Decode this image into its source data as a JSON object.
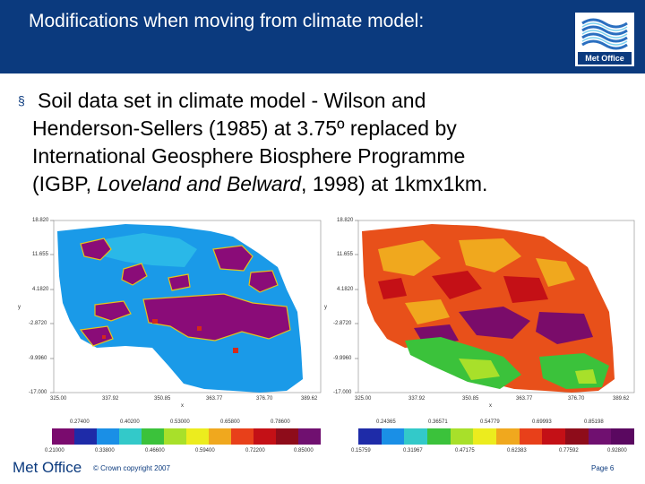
{
  "header": {
    "title": "Modifications when moving from climate model:",
    "logo_text": "Met Office",
    "background": "#0b3a7e"
  },
  "bullet": {
    "marker": "§",
    "line1": "Soil data set in climate model - Wilson and",
    "line2": "Henderson-Sellers (1985) at 3.75º replaced by",
    "line3": "International Geosphere Biosphere Programme",
    "line4_a": "(IGBP, ",
    "line4_italic": "Loveland and Belward",
    "line4_b": ", 1998) at 1kmx1km."
  },
  "map_left": {
    "y_ticks": [
      "18.820",
      "11.655",
      "4.1820",
      "-2.8720",
      "-9.9960",
      "-17.000"
    ],
    "x_ticks": [
      "325.00",
      "337.92",
      "350.85",
      "363.77",
      "376.70",
      "389.62"
    ],
    "x_label": "x",
    "y_label": "y",
    "legend_top": [
      "0.27400",
      "0.40200",
      "0.53000",
      "0.65800",
      "0.78600"
    ],
    "legend_bottom": [
      "0.21000",
      "0.33800",
      "0.46600",
      "0.59400",
      "0.72200",
      "0.85000"
    ],
    "legend_colors": [
      "#7a0b6e",
      "#1e2ba8",
      "#1a8fe6",
      "#33c9c9",
      "#3bc23b",
      "#a8e02a",
      "#ecec1e",
      "#f0a81e",
      "#e8401a",
      "#c41016",
      "#8e0c1a",
      "#701070"
    ]
  },
  "map_right": {
    "y_ticks": [
      "18.820",
      "11.655",
      "4.1820",
      "-2.8720",
      "-9.9960",
      "-17.000"
    ],
    "x_ticks": [
      "325.00",
      "337.92",
      "350.85",
      "363.77",
      "376.70",
      "389.62"
    ],
    "x_label": "x",
    "y_label": "y",
    "legend_top": [
      "0.24365",
      "0.36571",
      "0.54779",
      "0.69993",
      "0.85198"
    ],
    "legend_bottom": [
      "0.15759",
      "0.31967",
      "0.47175",
      "0.62383",
      "0.77592",
      "0.92800"
    ],
    "legend_colors": [
      "#1e2ba8",
      "#1a8fe6",
      "#33c9c9",
      "#3bc23b",
      "#a8e02a",
      "#ecec1e",
      "#f0a81e",
      "#e8401a",
      "#c41016",
      "#8e0c1a",
      "#701070",
      "#5a0860"
    ]
  },
  "footer": {
    "brand": "Met Office",
    "copyright": "© Crown copyright 2007",
    "page": "Page 6"
  }
}
